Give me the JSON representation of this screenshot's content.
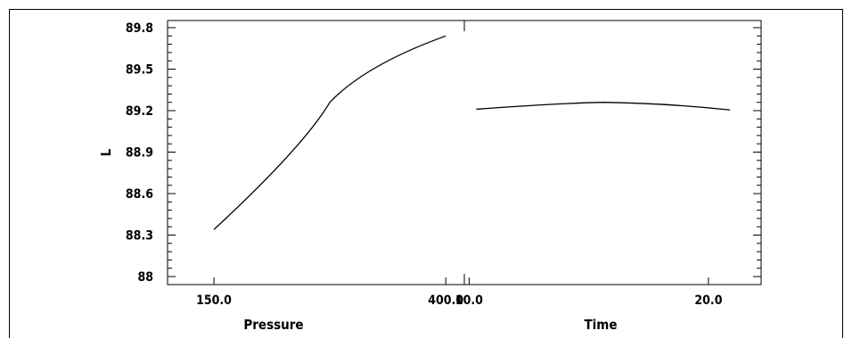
{
  "chart_data": {
    "type": "line",
    "ylabel": "L",
    "ylim": [
      88,
      89.8
    ],
    "yticks": [
      "88",
      "88.3",
      "88.6",
      "88.9",
      "89.2",
      "89.5",
      "89.8"
    ],
    "panels": [
      {
        "xlabel": "Pressure",
        "xticks": [
          {
            "value": 150,
            "label": "150.0"
          },
          {
            "value": 400,
            "label": "400.0"
          }
        ],
        "xlim": [
          100,
          420
        ],
        "series": [
          {
            "x": [
              150,
              275,
              400
            ],
            "y": [
              88.34,
              89.26,
              89.74
            ]
          }
        ]
      },
      {
        "xlabel": "Time",
        "xticks": [
          {
            "value": 10,
            "label": "10.0"
          },
          {
            "value": 20,
            "label": "20.0"
          }
        ],
        "xlim": [
          9.8,
          22.2
        ],
        "series": [
          {
            "x": [
              10.3,
              15.6,
              20.9
            ],
            "y": [
              89.21,
              89.26,
              89.205
            ]
          }
        ]
      }
    ]
  }
}
